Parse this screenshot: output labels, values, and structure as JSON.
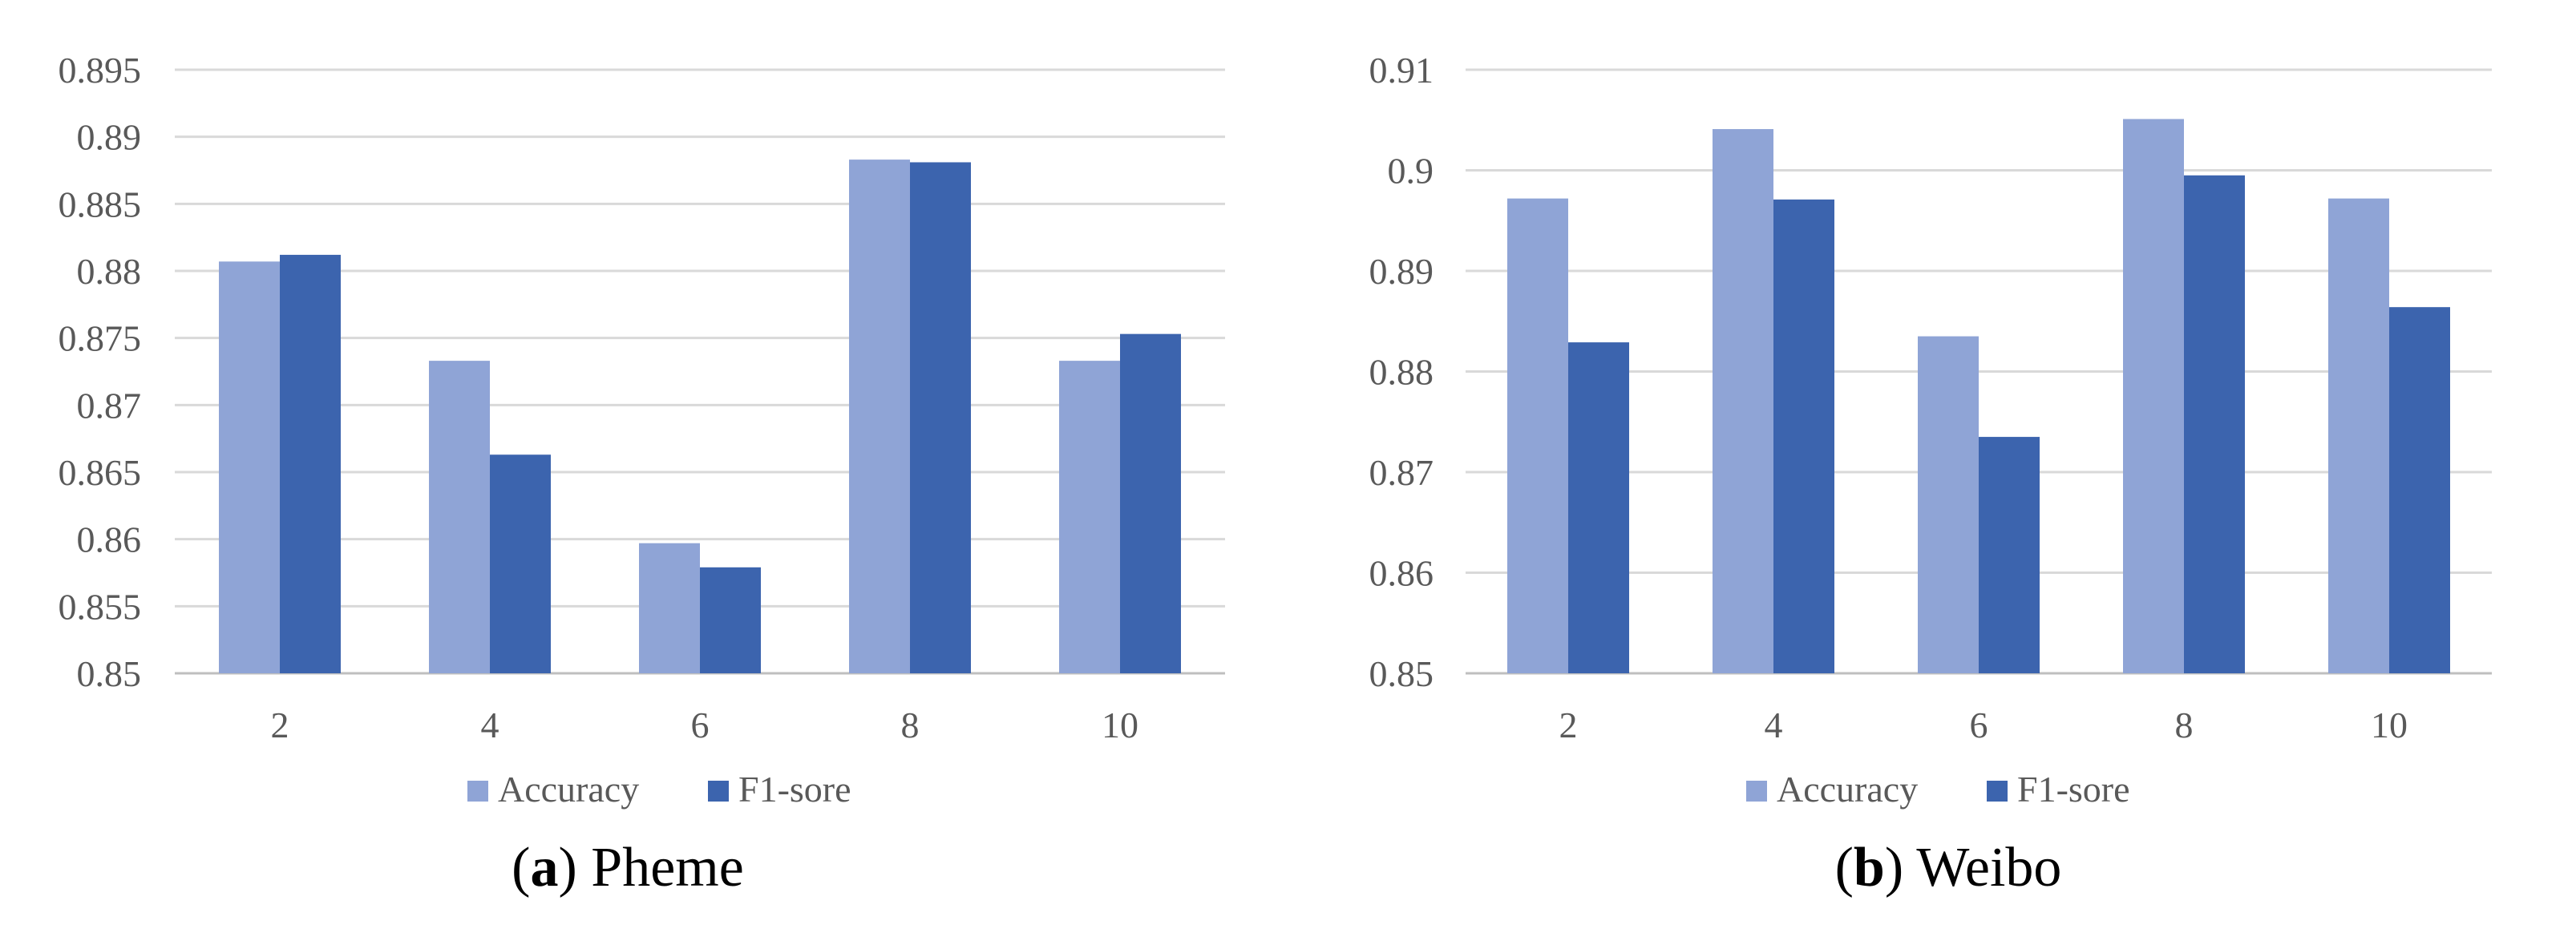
{
  "colors": {
    "accuracy": "#8FA4D6",
    "f1": "#3C64AE",
    "grid": "#D9D9D9",
    "axis": "#BFBFBF"
  },
  "chart_data": [
    {
      "type": "bar",
      "title": "",
      "xlabel": "",
      "ylabel": "",
      "categories": [
        "2",
        "4",
        "6",
        "8",
        "10"
      ],
      "series": [
        {
          "name": "Accuracy",
          "values": [
            0.8807,
            0.8733,
            0.8597,
            0.8883,
            0.8733
          ]
        },
        {
          "name": "F1-sore",
          "values": [
            0.8812,
            0.8663,
            0.8579,
            0.8881,
            0.8753
          ]
        }
      ],
      "ylim": [
        0.85,
        0.895
      ],
      "yticks": [
        "0.85",
        "0.855",
        "0.86",
        "0.865",
        "0.87",
        "0.875",
        "0.88",
        "0.885",
        "0.89",
        "0.895"
      ],
      "grid": true,
      "legend": "bottom",
      "caption": {
        "letter": "a",
        "text": "Pheme"
      }
    },
    {
      "type": "bar",
      "title": "",
      "xlabel": "",
      "ylabel": "",
      "categories": [
        "2",
        "4",
        "6",
        "8",
        "10"
      ],
      "series": [
        {
          "name": "Accuracy",
          "values": [
            0.8972,
            0.9041,
            0.8835,
            0.9051,
            0.8972
          ]
        },
        {
          "name": "F1-sore",
          "values": [
            0.8829,
            0.8971,
            0.8735,
            0.8995,
            0.8864
          ]
        }
      ],
      "ylim": [
        0.85,
        0.91
      ],
      "yticks": [
        "0.85",
        "0.86",
        "0.87",
        "0.88",
        "0.89",
        "0.9",
        "0.91"
      ],
      "grid": true,
      "legend": "bottom",
      "caption": {
        "letter": "b",
        "text": "Weibo"
      }
    }
  ]
}
